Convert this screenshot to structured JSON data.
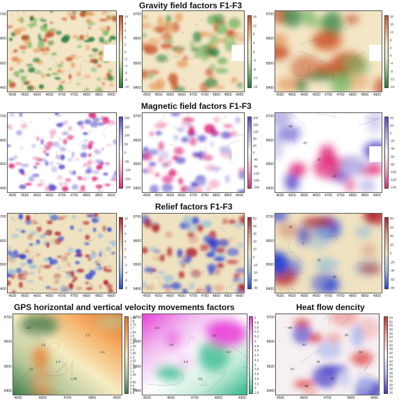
{
  "titles": {
    "gravity": "Gravity field factors F1-F3",
    "magnetic": "Magnetic field factors  F1-F3",
    "relief": "Relief factors  F1-F3",
    "gps": "GPS horizontal and vertical velocity movements factors",
    "heat": "Heat flow dencity"
  },
  "axes": {
    "y_ticks": [
      "8700",
      "8600",
      "8500",
      "8400"
    ],
    "x_ticks": [
      "4500",
      "4550",
      "4600",
      "4650",
      "4700",
      "4750",
      "4800",
      "4850",
      "4900"
    ],
    "x_ticks_short": [
      "4500",
      "4600",
      "4700",
      "4800",
      "4900"
    ]
  },
  "colorbars": {
    "gravity_1": [
      "10",
      "8",
      "6",
      "4",
      "2",
      "0",
      "-2",
      "-4",
      "-6",
      "-8",
      "-10"
    ],
    "gravity_2": [
      "16",
      "12",
      "8",
      "4",
      "0",
      "-4",
      "-8",
      "-12",
      "-16"
    ],
    "gravity_3": [
      "20",
      "16",
      "12",
      "8",
      "4",
      "0",
      "-4",
      "-8",
      "-12",
      "-16"
    ],
    "magnetic_1": [
      "200",
      "150",
      "100",
      "50",
      "0",
      "-50",
      "-100",
      "-150",
      "-200"
    ],
    "magnetic_2": [
      "200",
      "160",
      "120",
      "80",
      "40",
      "0",
      "-40",
      "-80",
      "-120",
      "-160",
      "-200"
    ],
    "magnetic_3": [
      "40",
      "20",
      "0",
      "-20",
      "-40",
      "-60",
      "-80",
      "-100",
      "-120",
      "-140"
    ],
    "relief_1": [
      "10",
      "8",
      "6",
      "4",
      "2",
      "0",
      "-2",
      "-4",
      "-6",
      "-8"
    ],
    "relief_2": [
      "50",
      "40",
      "30",
      "20",
      "10",
      "0",
      "-10",
      "-20",
      "-30",
      "-40"
    ],
    "relief_3": [
      "80",
      "60",
      "40",
      "20",
      "0",
      "-20",
      "-40",
      "-60",
      "-80"
    ],
    "gps_1": [
      "1.85",
      "1.8",
      "1.75",
      "1.7",
      "1.65",
      "1.6",
      "1.55",
      "1.5",
      "1.45",
      "1.4",
      "1.35",
      "1.3",
      "1.25",
      "1.2",
      "1.15",
      "1.1",
      "1.05",
      "1",
      "0.95",
      "0.9",
      "0.85",
      "0.8"
    ],
    "gps_2": [
      "6",
      "5.8",
      "5.6",
      "5.4",
      "5.2",
      "5",
      "4.8",
      "4.6",
      "4.4",
      "4.2",
      "4",
      "3.8",
      "3.6",
      "3.4",
      "3.2",
      "3",
      "2.8"
    ],
    "heat": [
      "64",
      "62",
      "60",
      "58",
      "56",
      "54",
      "52",
      "50",
      "48",
      "46",
      "44",
      "42",
      "40",
      "38",
      "36",
      "34",
      "32",
      "30",
      "28",
      "26"
    ]
  },
  "contour_labels": {
    "gps_1": [
      "1.8",
      "1.6",
      "1.4",
      "1.35",
      "1.2",
      "1.1",
      "1.5"
    ],
    "gps_2": [
      "5.3",
      "4.8",
      "4.3",
      "3.8",
      "4.2",
      "3.3"
    ],
    "heat": [
      "48",
      "44",
      "40",
      "38",
      "36",
      "34",
      "54",
      "56"
    ],
    "magnetic_3": [
      "-60",
      "-20",
      "20",
      "-40"
    ],
    "relief_3": [
      "-20",
      "0",
      "20",
      "-40"
    ]
  },
  "colors": {
    "gravity": [
      "#1f7a3a",
      "#7fb86a",
      "#dfe8c4",
      "#f3e6c6",
      "#e9a36a",
      "#c8502a"
    ],
    "magnetic": [
      "#e0287a",
      "#f3a7c6",
      "#ffffff",
      "#b4b0e6",
      "#5046c8"
    ],
    "relief": [
      "#2743d6",
      "#9fc1d8",
      "#efe2c0",
      "#d9a487",
      "#b0202a"
    ],
    "gps1": [
      "#3f7a4a",
      "#b8c99c",
      "#f6ecc2",
      "#f5b16a",
      "#e8741c"
    ],
    "gps2": [
      "#2fb78c",
      "#c7ecd9",
      "#ffffff",
      "#f0b8f0",
      "#e840d8"
    ],
    "heat": [
      "#3b34c4",
      "#aab4ea",
      "#f6f0f2",
      "#f0a7a7",
      "#d8302a"
    ]
  }
}
